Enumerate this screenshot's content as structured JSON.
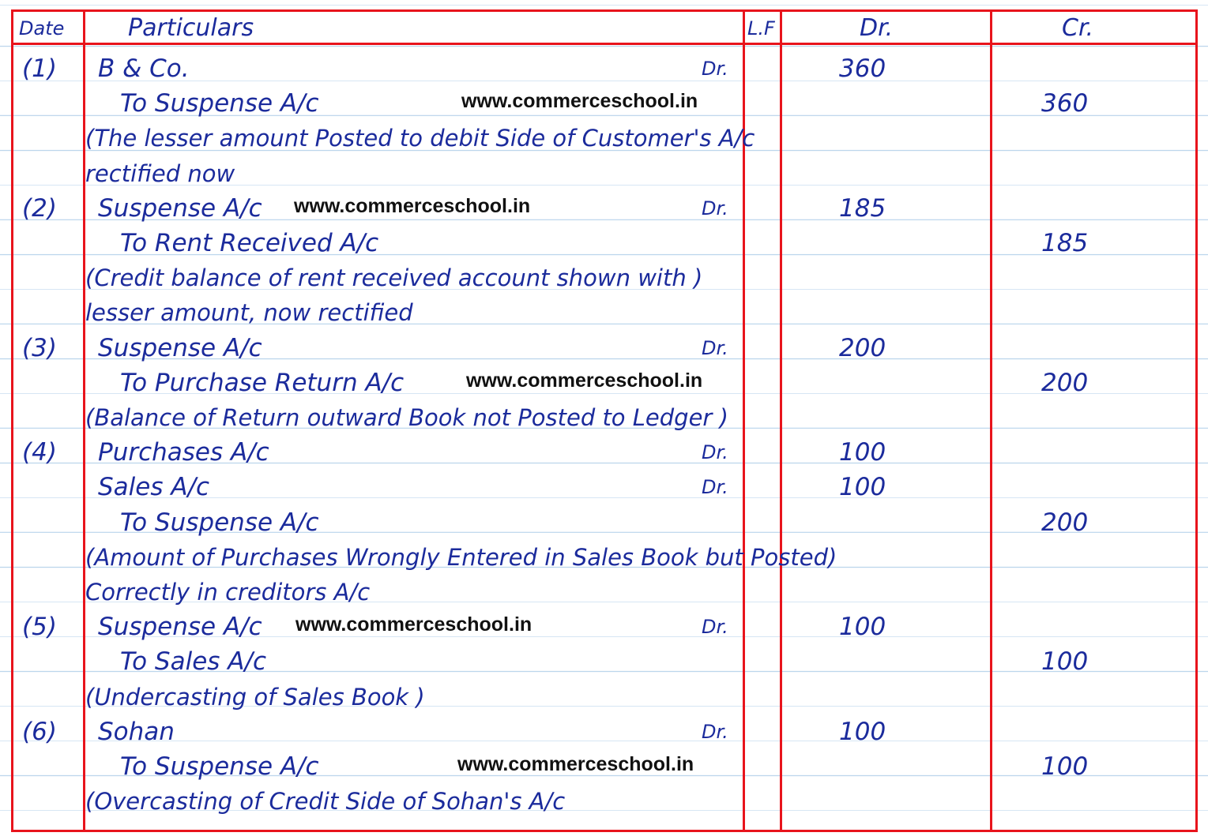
{
  "header": {
    "date": "Date",
    "particulars": "Particulars",
    "lf": "L.F",
    "dr": "Dr.",
    "cr": "Cr."
  },
  "colors": {
    "ink": "#1b2b9c",
    "rule": "#e8141c",
    "paper_lines": "#bcd6ec"
  },
  "watermark": "www.commerceschool.in",
  "rows": [
    {
      "date": "(1)",
      "particulars": "B & Co.",
      "dr_marker": "Dr.",
      "dr": "360",
      "cr": ""
    },
    {
      "date": "",
      "particulars": "To Suspense A/c",
      "dr_marker": "",
      "dr": "",
      "cr": "360",
      "watermark": true
    },
    {
      "date": "",
      "particulars": "(The lesser amount Posted to debit Side of Customer's A/c",
      "dr_marker": "",
      "dr": "",
      "cr": ""
    },
    {
      "date": "",
      "particulars": "rectified now",
      "dr_marker": "",
      "dr": "",
      "cr": ""
    },
    {
      "date": "(2)",
      "particulars": "Suspense A/c",
      "dr_marker": "Dr.",
      "dr": "185",
      "cr": "",
      "watermark": true
    },
    {
      "date": "",
      "particulars": "To Rent Received A/c",
      "dr_marker": "",
      "dr": "",
      "cr": "185"
    },
    {
      "date": "",
      "particulars": "(Credit balance of rent received account shown with )",
      "dr_marker": "",
      "dr": "",
      "cr": ""
    },
    {
      "date": "",
      "particulars": "lesser amount, now rectified",
      "dr_marker": "",
      "dr": "",
      "cr": ""
    },
    {
      "date": "(3)",
      "particulars": "Suspense A/c",
      "dr_marker": "Dr.",
      "dr": "200",
      "cr": ""
    },
    {
      "date": "",
      "particulars": "To Purchase Return A/c",
      "dr_marker": "",
      "dr": "",
      "cr": "200",
      "watermark": true
    },
    {
      "date": "",
      "particulars": "(Balance of Return outward Book not Posted to Ledger )",
      "dr_marker": "",
      "dr": "",
      "cr": ""
    },
    {
      "date": "(4)",
      "particulars": "Purchases A/c",
      "dr_marker": "Dr.",
      "dr": "100",
      "cr": ""
    },
    {
      "date": "",
      "particulars": "Sales A/c",
      "dr_marker": "Dr.",
      "dr": "100",
      "cr": ""
    },
    {
      "date": "",
      "particulars": "To Suspense A/c",
      "dr_marker": "",
      "dr": "",
      "cr": "200"
    },
    {
      "date": "",
      "particulars": "(Amount of Purchases Wrongly Entered in Sales Book but Posted)",
      "dr_marker": "",
      "dr": "",
      "cr": ""
    },
    {
      "date": "",
      "particulars": "Correctly in creditors A/c",
      "dr_marker": "",
      "dr": "",
      "cr": ""
    },
    {
      "date": "(5)",
      "particulars": "Suspense A/c",
      "dr_marker": "Dr.",
      "dr": "100",
      "cr": "",
      "watermark": true
    },
    {
      "date": "",
      "particulars": "To Sales A/c",
      "dr_marker": "",
      "dr": "",
      "cr": "100"
    },
    {
      "date": "",
      "particulars": "(Undercasting of Sales Book )",
      "dr_marker": "",
      "dr": "",
      "cr": ""
    },
    {
      "date": "(6)",
      "particulars": "Sohan",
      "dr_marker": "Dr.",
      "dr": "100",
      "cr": ""
    },
    {
      "date": "",
      "particulars": "To Suspense A/c",
      "dr_marker": "",
      "dr": "",
      "cr": "100",
      "watermark": true
    },
    {
      "date": "",
      "particulars": "(Overcasting of Credit Side of Sohan's A/c",
      "dr_marker": "",
      "dr": "",
      "cr": ""
    }
  ]
}
